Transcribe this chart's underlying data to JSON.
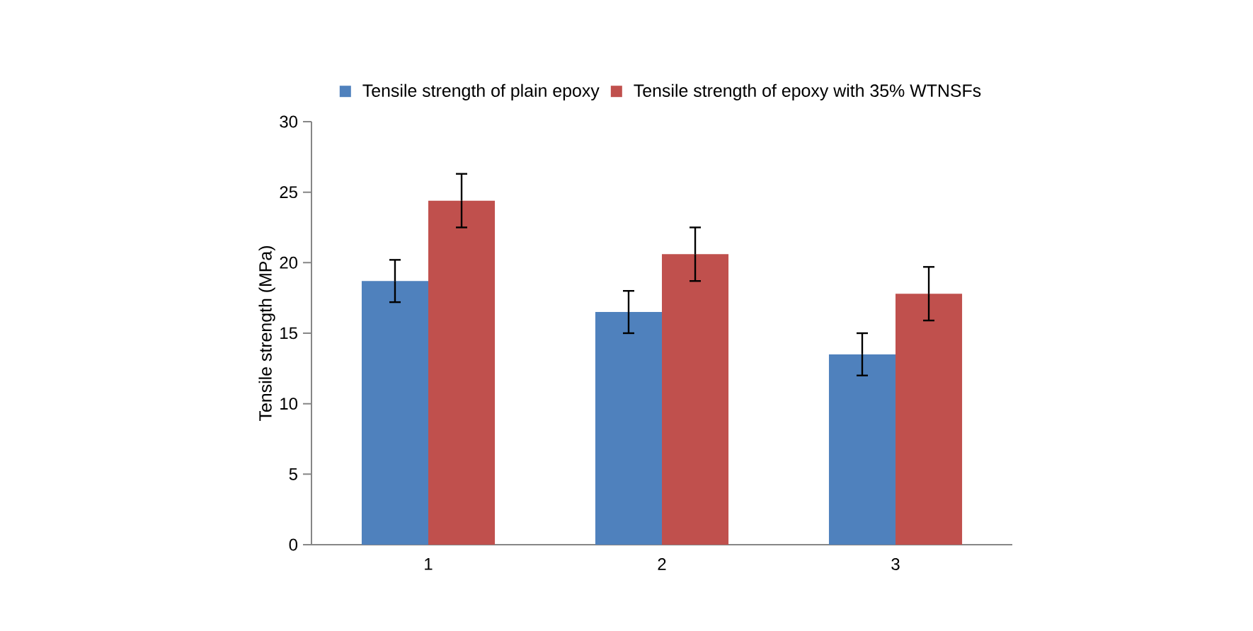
{
  "chart_data": {
    "type": "bar",
    "ylabel": "Tensile strength (MPa)",
    "categories": [
      "1",
      "2",
      "3"
    ],
    "series": [
      {
        "name": "Tensile strength of plain epoxy",
        "color": "#4f81bd",
        "values": [
          18.7,
          16.5,
          13.5
        ],
        "errors": [
          1.5,
          1.5,
          1.5
        ]
      },
      {
        "name": "Tensile strength of epoxy with 35% WTNSFs",
        "color": "#c0504d",
        "values": [
          24.4,
          20.6,
          17.8
        ],
        "errors": [
          1.9,
          1.9,
          1.9
        ]
      }
    ],
    "ylim": [
      0,
      30
    ],
    "yticks": [
      0,
      5,
      10,
      15,
      20,
      25,
      30
    ],
    "legend": "top"
  }
}
